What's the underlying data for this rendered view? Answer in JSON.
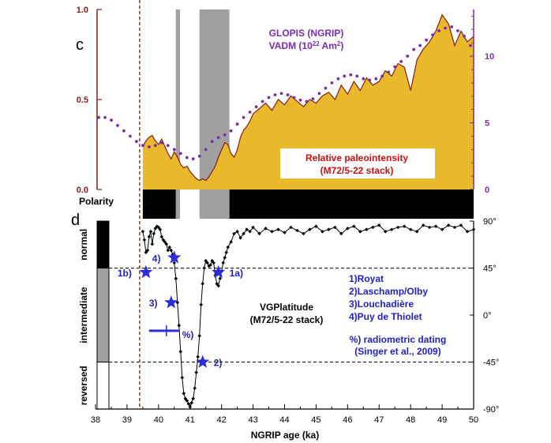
{
  "colors": {
    "rpi_fill": "#E8B92A",
    "rpi_line": "#8B1A1A",
    "glopis": "#7B2AB8",
    "vgp_line": "#000000",
    "star": "#2B2BE0",
    "left_axis": "#8B1A1A",
    "right_axis": "#7B2AB8",
    "label_blue": "#2020C8",
    "label_red": "#CC1010",
    "shade": "#A0A0A0",
    "age_marker": "#8B3A1A"
  },
  "chart_data": [
    {
      "type": "area",
      "panel_label": "c",
      "xlim": [
        38,
        50
      ],
      "ylim": [
        0,
        1.0
      ],
      "y_ticks": [
        "0.0",
        "0.5",
        "1.0"
      ],
      "y_ticks_values": [
        0,
        0.5,
        1.0
      ],
      "y2lim": [
        0,
        13.5
      ],
      "y2_ticks": [
        "0",
        "5",
        "10"
      ],
      "y2_ticks_values": [
        0,
        5,
        10
      ],
      "shaded_intervals": [
        [
          40.55,
          40.68
        ],
        [
          41.3,
          42.25
        ]
      ],
      "age_marker_x": 39.4,
      "series": [
        {
          "name": "Relative paleointensity (M72/5-22 stack)",
          "label_line1": "Relative paleointensity",
          "label_line2": "(M72/5-22 stack)",
          "x": [
            39.5,
            39.6,
            39.7,
            39.8,
            39.9,
            40.0,
            40.1,
            40.2,
            40.3,
            40.4,
            40.5,
            40.6,
            40.7,
            40.8,
            40.9,
            41.0,
            41.1,
            41.2,
            41.3,
            41.4,
            41.5,
            41.6,
            41.7,
            41.8,
            41.9,
            42.0,
            42.1,
            42.2,
            42.3,
            42.4,
            42.5,
            42.6,
            42.7,
            42.8,
            42.9,
            43.0,
            43.2,
            43.4,
            43.6,
            43.8,
            44.0,
            44.2,
            44.4,
            44.6,
            44.8,
            45.0,
            45.2,
            45.4,
            45.6,
            45.8,
            46.0,
            46.2,
            46.4,
            46.6,
            46.8,
            47.0,
            47.2,
            47.4,
            47.6,
            47.8,
            48.0,
            48.2,
            48.4,
            48.6,
            48.8,
            49.0,
            49.2,
            49.4,
            49.6,
            49.8,
            50.0
          ],
          "values": [
            0.24,
            0.27,
            0.29,
            0.3,
            0.27,
            0.25,
            0.28,
            0.24,
            0.2,
            0.17,
            0.21,
            0.18,
            0.14,
            0.12,
            0.13,
            0.1,
            0.08,
            0.06,
            0.05,
            0.06,
            0.05,
            0.07,
            0.1,
            0.13,
            0.18,
            0.22,
            0.26,
            0.25,
            0.2,
            0.18,
            0.22,
            0.29,
            0.33,
            0.35,
            0.38,
            0.42,
            0.45,
            0.48,
            0.44,
            0.5,
            0.47,
            0.52,
            0.49,
            0.46,
            0.5,
            0.48,
            0.52,
            0.54,
            0.5,
            0.58,
            0.53,
            0.6,
            0.55,
            0.62,
            0.58,
            0.6,
            0.66,
            0.63,
            0.7,
            0.68,
            0.55,
            0.72,
            0.78,
            0.82,
            0.88,
            0.97,
            0.92,
            0.8,
            0.88,
            0.82,
            0.85
          ]
        },
        {
          "name": "GLOPIS (NGRIP) VADM (10²² Am²)",
          "label_line1": "GLOPIS (NGRIP)",
          "label_line2_a": "VADM (10",
          "label_line2_sup": "22",
          "label_line2_b": " Am",
          "label_line2_sup2": "2",
          "label_line2_c": ")",
          "axis": "right",
          "x": [
            38.1,
            38.3,
            38.5,
            38.7,
            38.9,
            39.1,
            39.3,
            39.5,
            39.7,
            39.9,
            40.1,
            40.3,
            40.5,
            40.7,
            40.9,
            41.1,
            41.3,
            41.5,
            41.7,
            41.9,
            42.1,
            42.3,
            42.5,
            42.7,
            42.9,
            43.1,
            43.3,
            43.5,
            43.7,
            43.9,
            44.1,
            44.3,
            44.5,
            44.7,
            44.9,
            45.1,
            45.3,
            45.5,
            45.7,
            45.9,
            46.1,
            46.3,
            46.5,
            46.7,
            46.9,
            47.1,
            47.3,
            47.5,
            47.7,
            47.9,
            48.1,
            48.3,
            48.5,
            48.7,
            48.9,
            49.1,
            49.3,
            49.5,
            49.7,
            49.9
          ],
          "values": [
            5.4,
            5.4,
            5.2,
            4.8,
            4.4,
            4.0,
            3.6,
            3.3,
            3.2,
            3.3,
            3.5,
            3.3,
            3.0,
            2.7,
            2.4,
            2.3,
            2.5,
            3.0,
            3.6,
            3.9,
            4.1,
            4.4,
            4.9,
            5.4,
            5.8,
            6.2,
            6.6,
            6.9,
            7.1,
            7.2,
            7.1,
            6.9,
            6.7,
            6.6,
            6.8,
            7.2,
            7.6,
            8.0,
            8.3,
            8.5,
            8.6,
            8.5,
            8.3,
            8.2,
            8.3,
            8.5,
            8.8,
            9.2,
            9.6,
            10.0,
            10.5,
            10.8,
            11.2,
            11.6,
            11.9,
            12.1,
            12.2,
            11.9,
            11.5,
            10.8
          ]
        }
      ]
    },
    {
      "type": "line",
      "panel_label": "d",
      "xlim": [
        38,
        50
      ],
      "ylim": [
        -90,
        90
      ],
      "x_ticks": [
        "38",
        "39",
        "40",
        "41",
        "42",
        "43",
        "44",
        "45",
        "46",
        "47",
        "48",
        "49",
        "50"
      ],
      "x_ticks_values": [
        38,
        39,
        40,
        41,
        42,
        43,
        44,
        45,
        46,
        47,
        48,
        49,
        50
      ],
      "xlabel": "NGRIP age (ka)",
      "y2_ticks": [
        "90°",
        "45°",
        "0°",
        "-45°",
        "-90°"
      ],
      "y2_ticks_values": [
        90,
        45,
        0,
        -45,
        -90
      ],
      "polarity_label": "Polarity",
      "polarity_bar": [
        {
          "from": 39.5,
          "to": 40.55,
          "state": "normal"
        },
        {
          "from": 40.55,
          "to": 40.68,
          "state": "transitional"
        },
        {
          "from": 40.68,
          "to": 41.3,
          "state": "reversed"
        },
        {
          "from": 41.3,
          "to": 42.25,
          "state": "transitional"
        },
        {
          "from": 42.25,
          "to": 50.0,
          "state": "normal"
        }
      ],
      "zones": [
        {
          "label": "normal",
          "from": 45,
          "to": 90
        },
        {
          "label": "intermediate",
          "from": -45,
          "to": 45
        },
        {
          "label": "reversed",
          "from": -90,
          "to": -45
        }
      ],
      "series": [
        {
          "name": "VGPlatitude (M72/5-22 stack)",
          "label_line1": "VGPlatitude",
          "label_line2": "(M72/5-22 stack)",
          "x": [
            39.5,
            39.55,
            39.6,
            39.65,
            39.7,
            39.75,
            39.8,
            39.85,
            39.9,
            39.95,
            40.0,
            40.05,
            40.1,
            40.15,
            40.2,
            40.25,
            40.3,
            40.35,
            40.4,
            40.45,
            40.5,
            40.55,
            40.6,
            40.65,
            40.7,
            40.75,
            40.8,
            40.85,
            40.9,
            40.95,
            41.0,
            41.05,
            41.1,
            41.15,
            41.2,
            41.25,
            41.3,
            41.35,
            41.4,
            41.45,
            41.5,
            41.55,
            41.6,
            41.65,
            41.7,
            41.75,
            41.8,
            41.85,
            41.9,
            41.95,
            42.0,
            42.05,
            42.1,
            42.15,
            42.2,
            42.3,
            42.4,
            42.5,
            42.6,
            42.7,
            42.8,
            42.9,
            43.0,
            43.2,
            43.4,
            43.6,
            43.8,
            44.0,
            44.2,
            44.4,
            44.6,
            44.8,
            45.0,
            45.2,
            45.4,
            45.6,
            45.8,
            46.0,
            46.2,
            46.4,
            46.6,
            46.8,
            47.0,
            47.2,
            47.4,
            47.6,
            47.8,
            48.0,
            48.2,
            48.4,
            48.6,
            48.8,
            49.0,
            49.2,
            49.4,
            49.6,
            49.8,
            50.0
          ],
          "values": [
            80,
            72,
            60,
            62,
            75,
            80,
            68,
            78,
            83,
            85,
            84,
            82,
            75,
            72,
            70,
            68,
            62,
            65,
            62,
            58,
            50,
            35,
            12,
            -10,
            -35,
            -60,
            -75,
            -80,
            -82,
            -85,
            -88,
            -84,
            -80,
            -70,
            -55,
            -40,
            -20,
            10,
            30,
            45,
            52,
            50,
            47,
            48,
            52,
            50,
            38,
            30,
            28,
            35,
            42,
            50,
            55,
            60,
            65,
            70,
            78,
            80,
            74,
            78,
            82,
            80,
            84,
            78,
            83,
            80,
            82,
            79,
            84,
            81,
            78,
            82,
            85,
            80,
            82,
            84,
            78,
            83,
            85,
            80,
            82,
            84,
            86,
            80,
            82,
            84,
            85,
            82,
            80,
            86,
            84,
            85,
            82,
            86,
            84,
            86,
            80,
            82
          ]
        }
      ],
      "annotations": [
        {
          "id": "1b",
          "label": "1b)",
          "x": 39.6,
          "y": 41
        },
        {
          "id": "4",
          "label": "4)",
          "x": 40.5,
          "y": 55
        },
        {
          "id": "3",
          "label": "3)",
          "x": 40.4,
          "y": 12
        },
        {
          "id": "1a",
          "label": "1a)",
          "x": 41.9,
          "y": 41
        },
        {
          "id": "2",
          "label": "2)",
          "x": 41.4,
          "y": -45
        }
      ],
      "radiometric_dating": {
        "label": "%)",
        "x_from": 39.7,
        "x_to": 40.65,
        "y": -15,
        "tick_x": 40.25
      },
      "legend_lines": [
        "1)Royat",
        "2)Laschamp/Olby",
        "3)Louchadière",
        "4)Puy de Thiolet",
        "",
        "%) radiometric dating",
        "(Singer et al., 2009)"
      ]
    }
  ]
}
